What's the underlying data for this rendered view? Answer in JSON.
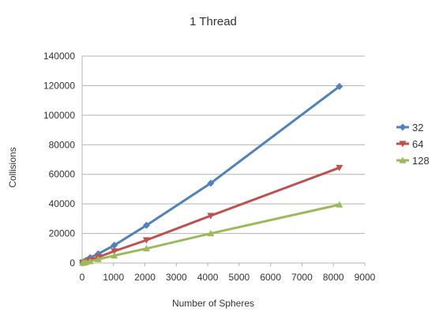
{
  "chart_data": {
    "type": "line",
    "title": "1 Thread",
    "xlabel": "Number of Spheres",
    "ylabel": "Collisions",
    "xlim": [
      0,
      9000
    ],
    "ylim": [
      0,
      140000
    ],
    "x_ticks": [
      "0",
      "1000",
      "2000",
      "3000",
      "4000",
      "5000",
      "6000",
      "7000",
      "8000",
      "9000"
    ],
    "y_ticks": [
      "0",
      "20000",
      "40000",
      "60000",
      "80000",
      "100000",
      "120000",
      "140000"
    ],
    "grid": "horizontal",
    "legend_position": "right",
    "x": [
      16,
      32,
      64,
      128,
      256,
      512,
      1024,
      2048,
      4096,
      8192
    ],
    "series": [
      {
        "name": "32",
        "color": "#4f81bd",
        "marker": "diamond",
        "values": [
          200,
          400,
          900,
          1800,
          3700,
          6200,
          12000,
          25500,
          54000,
          119500
        ]
      },
      {
        "name": "64",
        "color": "#c0504d",
        "marker": "triangle-down",
        "values": [
          100,
          250,
          500,
          1000,
          2000,
          4000,
          8000,
          15500,
          32000,
          64500
        ]
      },
      {
        "name": "128",
        "color": "#9bbb59",
        "marker": "triangle-up",
        "values": [
          80,
          150,
          300,
          600,
          1200,
          2500,
          5000,
          9800,
          20000,
          39500
        ]
      }
    ]
  }
}
